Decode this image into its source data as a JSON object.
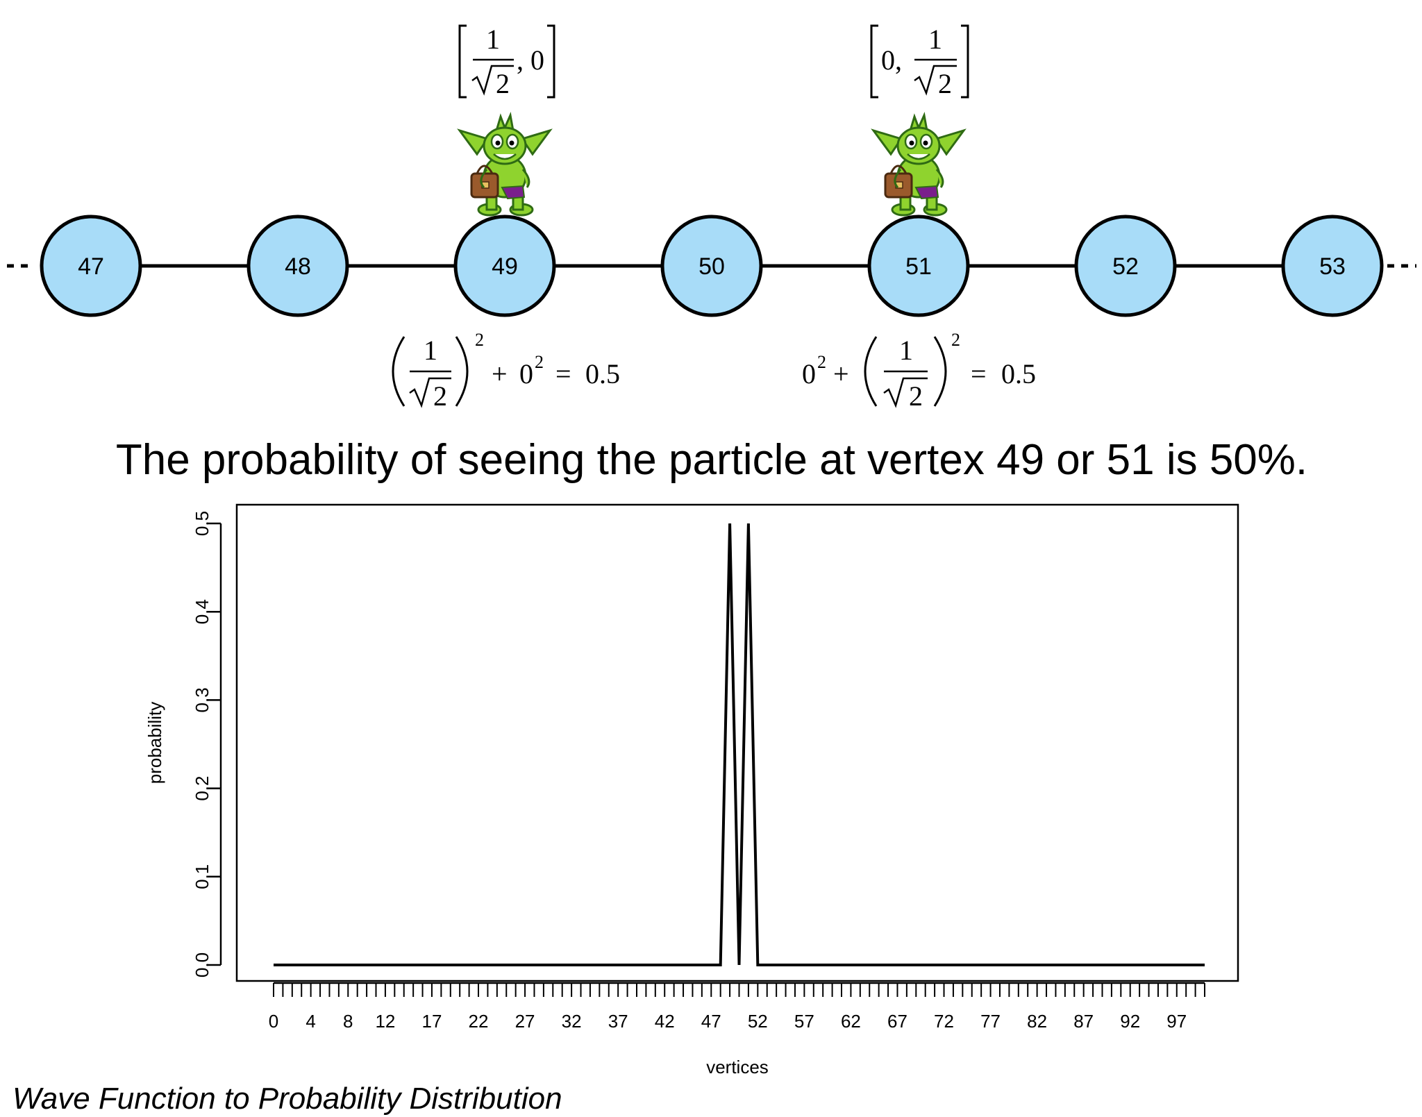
{
  "graph": {
    "nodes": [
      "47",
      "48",
      "49",
      "50",
      "51",
      "52",
      "53"
    ],
    "node_fill": "#a8dcf8",
    "node_stroke": "#000000"
  },
  "amplitudes": {
    "left": {
      "vertex": "49",
      "first_numerator": "1",
      "first_radicand": "2",
      "second": "0",
      "separator": ","
    },
    "right": {
      "vertex": "51",
      "first": "0",
      "separator": ",",
      "second_numerator": "1",
      "second_radicand": "2"
    }
  },
  "probabilities": {
    "left": {
      "numerator": "1",
      "radicand": "2",
      "exponent": "2",
      "plus": "+",
      "zero": "0",
      "zero_exponent": "2",
      "equals": "=",
      "result": "0.5"
    },
    "right": {
      "zero": "0",
      "zero_exponent": "2",
      "plus": "+",
      "numerator": "1",
      "radicand": "2",
      "exponent": "2",
      "equals": "=",
      "result": "0.5"
    }
  },
  "headline": "The probability of seeing the particle at vertex 49 or 51 is 50%.",
  "caption": "Wave Function to Probability Distribution",
  "colors": {
    "goblin_green": "#8fd32e",
    "goblin_dark": "#2f6b14",
    "bag_brown": "#9a5a2c",
    "shorts_purple": "#7a1f8c"
  },
  "chart_data": {
    "type": "line",
    "x": [
      0,
      1,
      2,
      3,
      4,
      5,
      6,
      7,
      8,
      9,
      10,
      11,
      12,
      13,
      14,
      15,
      16,
      17,
      18,
      19,
      20,
      21,
      22,
      23,
      24,
      25,
      26,
      27,
      28,
      29,
      30,
      31,
      32,
      33,
      34,
      35,
      36,
      37,
      38,
      39,
      40,
      41,
      42,
      43,
      44,
      45,
      46,
      47,
      48,
      49,
      50,
      51,
      52,
      53,
      54,
      55,
      56,
      57,
      58,
      59,
      60,
      61,
      62,
      63,
      64,
      65,
      66,
      67,
      68,
      69,
      70,
      71,
      72,
      73,
      74,
      75,
      76,
      77,
      78,
      79,
      80,
      81,
      82,
      83,
      84,
      85,
      86,
      87,
      88,
      89,
      90,
      91,
      92,
      93,
      94,
      95,
      96,
      97,
      98,
      99,
      100
    ],
    "values": [
      0,
      0,
      0,
      0,
      0,
      0,
      0,
      0,
      0,
      0,
      0,
      0,
      0,
      0,
      0,
      0,
      0,
      0,
      0,
      0,
      0,
      0,
      0,
      0,
      0,
      0,
      0,
      0,
      0,
      0,
      0,
      0,
      0,
      0,
      0,
      0,
      0,
      0,
      0,
      0,
      0,
      0,
      0,
      0,
      0,
      0,
      0,
      0,
      0,
      0.5,
      0,
      0.5,
      0,
      0,
      0,
      0,
      0,
      0,
      0,
      0,
      0,
      0,
      0,
      0,
      0,
      0,
      0,
      0,
      0,
      0,
      0,
      0,
      0,
      0,
      0,
      0,
      0,
      0,
      0,
      0,
      0,
      0,
      0,
      0,
      0,
      0,
      0,
      0,
      0,
      0,
      0,
      0,
      0,
      0,
      0,
      0,
      0,
      0,
      0,
      0,
      0
    ],
    "xlabel": "vertices",
    "ylabel": "probability",
    "x_tick_labels": [
      "0",
      "4",
      "8",
      "12",
      "17",
      "22",
      "27",
      "32",
      "37",
      "42",
      "47",
      "52",
      "57",
      "62",
      "67",
      "72",
      "77",
      "82",
      "87",
      "92",
      "97"
    ],
    "y_ticks": [
      "0.0",
      "0.1",
      "0.2",
      "0.3",
      "0.4",
      "0.5"
    ],
    "xlim": [
      0,
      100
    ],
    "ylim": [
      0,
      0.5
    ],
    "grid": false
  }
}
